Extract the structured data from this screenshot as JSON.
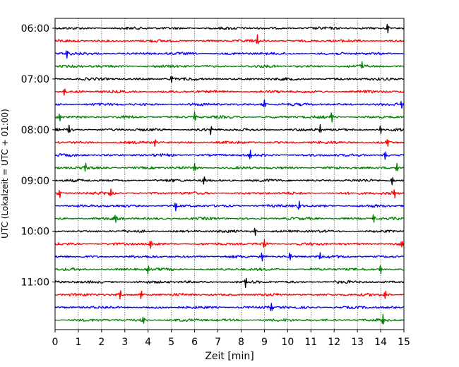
{
  "chart_data": {
    "type": "line",
    "title": "",
    "xlabel": "Zeit  [min]",
    "ylabel": "UTC (Lokalzeit = UTC + 01:00)",
    "xlim": [
      0,
      15
    ],
    "x_ticks": [
      0,
      1,
      2,
      3,
      4,
      5,
      6,
      7,
      8,
      9,
      10,
      11,
      12,
      13,
      14,
      15
    ],
    "x_tick_labels": [
      "0",
      "1",
      "2",
      "3",
      "4",
      "5",
      "6",
      "7",
      "8",
      "9",
      "10",
      "11",
      "12",
      "13",
      "14",
      "15"
    ],
    "y_tick_labels": [
      "06:00",
      "07:00",
      "08:00",
      "09:00",
      "10:00",
      "11:00"
    ],
    "grid": "vertical dotted",
    "trace_interval_min": 15,
    "colors": [
      "#000000",
      "#ff0000",
      "#0000ff",
      "#008000"
    ],
    "traces": [
      {
        "start": "06:00",
        "color": "#000000",
        "events": [
          14.3
        ]
      },
      {
        "start": "06:15",
        "color": "#ff0000",
        "events": [
          8.7
        ]
      },
      {
        "start": "06:30",
        "color": "#0000ff",
        "events": [
          0.5
        ]
      },
      {
        "start": "06:45",
        "color": "#008000",
        "events": [
          13.2
        ]
      },
      {
        "start": "07:00",
        "color": "#000000",
        "events": [
          5.0
        ]
      },
      {
        "start": "07:15",
        "color": "#ff0000",
        "events": [
          0.4
        ]
      },
      {
        "start": "07:30",
        "color": "#0000ff",
        "events": [
          9.0,
          14.9
        ]
      },
      {
        "start": "07:45",
        "color": "#008000",
        "events": [
          0.2,
          6.0,
          11.9
        ]
      },
      {
        "start": "08:00",
        "color": "#000000",
        "events": [
          0.6,
          6.7,
          11.4,
          14.0
        ]
      },
      {
        "start": "08:15",
        "color": "#ff0000",
        "events": [
          4.3,
          14.3
        ]
      },
      {
        "start": "08:30",
        "color": "#0000ff",
        "events": [
          8.4,
          14.2
        ]
      },
      {
        "start": "08:45",
        "color": "#008000",
        "events": [
          1.3,
          6.0,
          14.7
        ]
      },
      {
        "start": "09:00",
        "color": "#000000",
        "events": [
          6.4,
          14.5
        ]
      },
      {
        "start": "09:15",
        "color": "#ff0000",
        "events": [
          0.2,
          2.4,
          14.6
        ]
      },
      {
        "start": "09:30",
        "color": "#0000ff",
        "events": [
          5.2,
          10.5
        ]
      },
      {
        "start": "09:45",
        "color": "#008000",
        "events": [
          2.6,
          13.7
        ]
      },
      {
        "start": "10:00",
        "color": "#000000",
        "events": [
          8.6
        ]
      },
      {
        "start": "10:15",
        "color": "#ff0000",
        "events": [
          4.1,
          9.0,
          14.9
        ]
      },
      {
        "start": "10:30",
        "color": "#0000ff",
        "events": [
          8.9,
          10.1,
          11.4
        ]
      },
      {
        "start": "10:45",
        "color": "#008000",
        "events": [
          4.0,
          14.0
        ]
      },
      {
        "start": "11:00",
        "color": "#000000",
        "events": [
          8.2
        ]
      },
      {
        "start": "11:15",
        "color": "#ff0000",
        "events": [
          2.8,
          3.7,
          14.2
        ]
      },
      {
        "start": "11:30",
        "color": "#0000ff",
        "events": [
          9.3
        ]
      },
      {
        "start": "11:45",
        "color": "#008000",
        "events": [
          3.8,
          14.1
        ]
      }
    ]
  }
}
